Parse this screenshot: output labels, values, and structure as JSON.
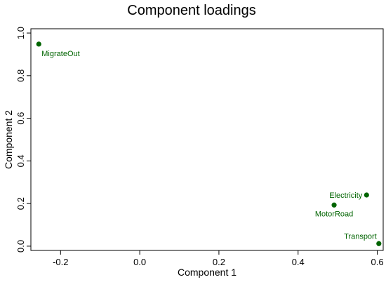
{
  "chart_data": {
    "type": "scatter",
    "title": "Component loadings",
    "xlabel": "Component 1",
    "ylabel": "Component 2",
    "xlim": [
      -0.275,
      0.615
    ],
    "ylim": [
      -0.02,
      1.02
    ],
    "xticks": [
      -0.2,
      0,
      0.2,
      0.4,
      0.6
    ],
    "xtick_labels": [
      "-0.2",
      "0.0",
      "0.2",
      "0.4",
      "0.6"
    ],
    "yticks": [
      0,
      0.2,
      0.4,
      0.6,
      0.8,
      1.0
    ],
    "ytick_labels": [
      "0.0",
      "0.2",
      "0.4",
      "0.6",
      "0.8",
      "1.0"
    ],
    "grid": false,
    "marker_color": "#006400",
    "points": [
      {
        "label": "MigrateOut",
        "x": -0.255,
        "y": 0.948,
        "label_pos": "below-right"
      },
      {
        "label": "Electricity",
        "x": 0.573,
        "y": 0.24,
        "label_pos": "left"
      },
      {
        "label": "MotorRoad",
        "x": 0.491,
        "y": 0.193,
        "label_pos": "below"
      },
      {
        "label": "Transport",
        "x": 0.604,
        "y": 0.012,
        "label_pos": "above-left"
      }
    ]
  }
}
